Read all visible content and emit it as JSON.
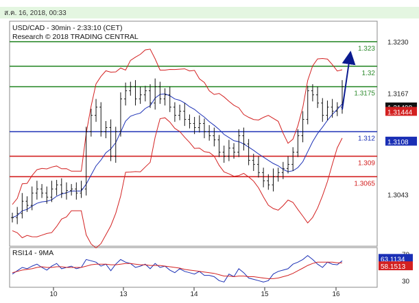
{
  "header": {
    "date": "ส.ค. 16, 2018, 00:33"
  },
  "chart_data": {
    "type": "line",
    "title": "USD/CAD - 30min - 2:33:10 (CET)",
    "subtitle": "Research © 2018 TRADING CENTRAL",
    "ylim": [
      1.298,
      1.3255
    ],
    "y_ticks": [
      "1.3230",
      "1.3167",
      "1.3043"
    ],
    "x_ticks": [
      "10",
      "13",
      "14",
      "15",
      "16"
    ],
    "levels": [
      {
        "label": "1.323",
        "value": 1.323,
        "color": "#2e8b2e",
        "role": "resistance"
      },
      {
        "label": "1.32",
        "value": 1.32,
        "color": "#2e8b2e",
        "role": "resistance"
      },
      {
        "label": "1.3175",
        "value": 1.3175,
        "color": "#2e8b2e",
        "role": "resistance"
      },
      {
        "label": "1.312",
        "value": 1.312,
        "color": "#1a2fb5",
        "role": "pivot"
      },
      {
        "label": "1.309",
        "value": 1.309,
        "color": "#d32020",
        "role": "support"
      },
      {
        "label": "1.3065",
        "value": 1.3065,
        "color": "#d32020",
        "role": "support"
      }
    ],
    "price_markers": [
      {
        "label": "1.31498",
        "value": 1.31498,
        "color": "#111111"
      },
      {
        "label": "1.31444",
        "value": 1.31444,
        "color": "#d32020"
      },
      {
        "label": "1.3108",
        "value": 1.3108,
        "color": "#1a2fb5"
      }
    ],
    "price_close": [
      1.3015,
      1.302,
      1.3035,
      1.303,
      1.3045,
      1.305,
      1.3045,
      1.304,
      1.305,
      1.3055,
      1.3045,
      1.3048,
      1.305,
      1.3045,
      1.305,
      1.312,
      1.314,
      1.315,
      1.312,
      1.3125,
      1.309,
      1.312,
      1.316,
      1.317,
      1.3175,
      1.316,
      1.3165,
      1.317,
      1.3155,
      1.3175,
      1.316,
      1.3165,
      1.315,
      1.314,
      1.3145,
      1.3135,
      1.313,
      1.3125,
      1.313,
      1.312,
      1.3115,
      1.311,
      1.3095,
      1.309,
      1.31,
      1.3095,
      1.3115,
      1.3105,
      1.3085,
      1.308,
      1.307,
      1.306,
      1.3055,
      1.3065,
      1.307,
      1.3075,
      1.308,
      1.3095,
      1.3115,
      1.3135,
      1.317,
      1.3165,
      1.3155,
      1.314,
      1.315,
      1.3145,
      1.315,
      1.3175
    ],
    "rsi": {
      "title": "RSI14 - 9MA",
      "ylim": [
        20,
        80
      ],
      "y_ticks": [
        "70",
        "30"
      ],
      "markers": [
        {
          "label": "63.1134",
          "value": 63.1134,
          "color": "#1a2fb5"
        },
        {
          "label": "58.1513",
          "value": 58.1513,
          "color": "#d32020"
        }
      ],
      "values": [
        40,
        45,
        50,
        48,
        52,
        55,
        50,
        46,
        52,
        56,
        48,
        50,
        52,
        48,
        50,
        62,
        60,
        58,
        52,
        55,
        45,
        55,
        62,
        58,
        56,
        50,
        52,
        55,
        48,
        56,
        50,
        52,
        46,
        42,
        48,
        44,
        42,
        40,
        44,
        38,
        38,
        36,
        30,
        28,
        40,
        36,
        48,
        42,
        34,
        32,
        30,
        28,
        30,
        40,
        44,
        46,
        48,
        55,
        58,
        62,
        68,
        62,
        55,
        50,
        58,
        55,
        54,
        60
      ],
      "ma": [
        42,
        44,
        46,
        47,
        48,
        50,
        51,
        50,
        50,
        51,
        51,
        50,
        50,
        50,
        50,
        52,
        54,
        55,
        55,
        55,
        54,
        54,
        55,
        56,
        56,
        55,
        54,
        54,
        53,
        53,
        53,
        52,
        51,
        50,
        49,
        47,
        46,
        45,
        44,
        43,
        42,
        41,
        39,
        37,
        37,
        36,
        37,
        37,
        36,
        36,
        35,
        34,
        33,
        33,
        34,
        36,
        38,
        41,
        45,
        49,
        53,
        56,
        58,
        58,
        58,
        58,
        57,
        57
      ]
    },
    "grid": false
  }
}
